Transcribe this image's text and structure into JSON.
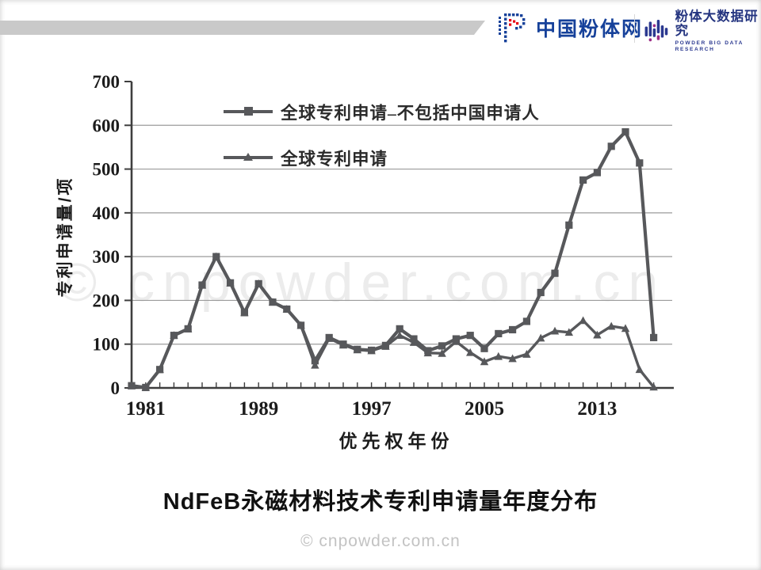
{
  "header": {
    "brand_left": {
      "name": "中国粉体网"
    },
    "brand_right": {
      "name": "粉体大数据研究",
      "subtitle": "POWDER BIG DATA RESEARCH"
    }
  },
  "watermark": "© cnpowder.com.cn",
  "footer": "© cnpowder.com.cn",
  "colors": {
    "line": "#57585b",
    "grid": "#9b9b9b",
    "axis": "#3e3e3e",
    "brand_blue": "#16419a",
    "brand_dark_blue": "#2b3990",
    "brand_purple": "#9c2c86",
    "brand_red": "#e60012",
    "band_gray": "#c9c9c9",
    "watermark_gray": "#ececec"
  },
  "chart_data": {
    "type": "line",
    "title": "NdFeB永磁材料技术专利申请量年度分布",
    "xlabel": "优先权年份",
    "ylabel": "专利申请量/项",
    "ylim": [
      0,
      700
    ],
    "grid": true,
    "legend_position": "inside-top-left",
    "y_ticks": [
      0,
      100,
      200,
      300,
      400,
      500,
      600,
      700
    ],
    "x_tick_labels": [
      1981,
      1989,
      1997,
      2005,
      2013
    ],
    "x": [
      1980,
      1981,
      1982,
      1983,
      1984,
      1985,
      1986,
      1987,
      1988,
      1989,
      1990,
      1991,
      1992,
      1993,
      1994,
      1995,
      1996,
      1997,
      1998,
      1999,
      2000,
      2001,
      2002,
      2003,
      2004,
      2005,
      2006,
      2007,
      2008,
      2009,
      2010,
      2011,
      2012,
      2013,
      2014,
      2015,
      2016,
      2017
    ],
    "series": [
      {
        "name": "全球专利申请–不包括中国申请人",
        "marker": "square",
        "values": [
          5,
          1,
          42,
          120,
          135,
          235,
          300,
          240,
          172,
          238,
          196,
          180,
          143,
          62,
          115,
          100,
          88,
          86,
          97,
          135,
          112,
          85,
          96,
          112,
          120,
          90,
          124,
          133,
          152,
          218,
          262,
          372,
          475,
          492,
          552,
          585,
          514,
          115
        ]
      },
      {
        "name": "全球专利申请",
        "marker": "triangle",
        "values": [
          5,
          1,
          42,
          120,
          135,
          235,
          300,
          240,
          172,
          238,
          196,
          180,
          143,
          52,
          113,
          98,
          87,
          85,
          95,
          120,
          104,
          80,
          79,
          106,
          81,
          60,
          72,
          67,
          77,
          114,
          130,
          127,
          154,
          121,
          141,
          136,
          42,
          2
        ]
      }
    ]
  }
}
